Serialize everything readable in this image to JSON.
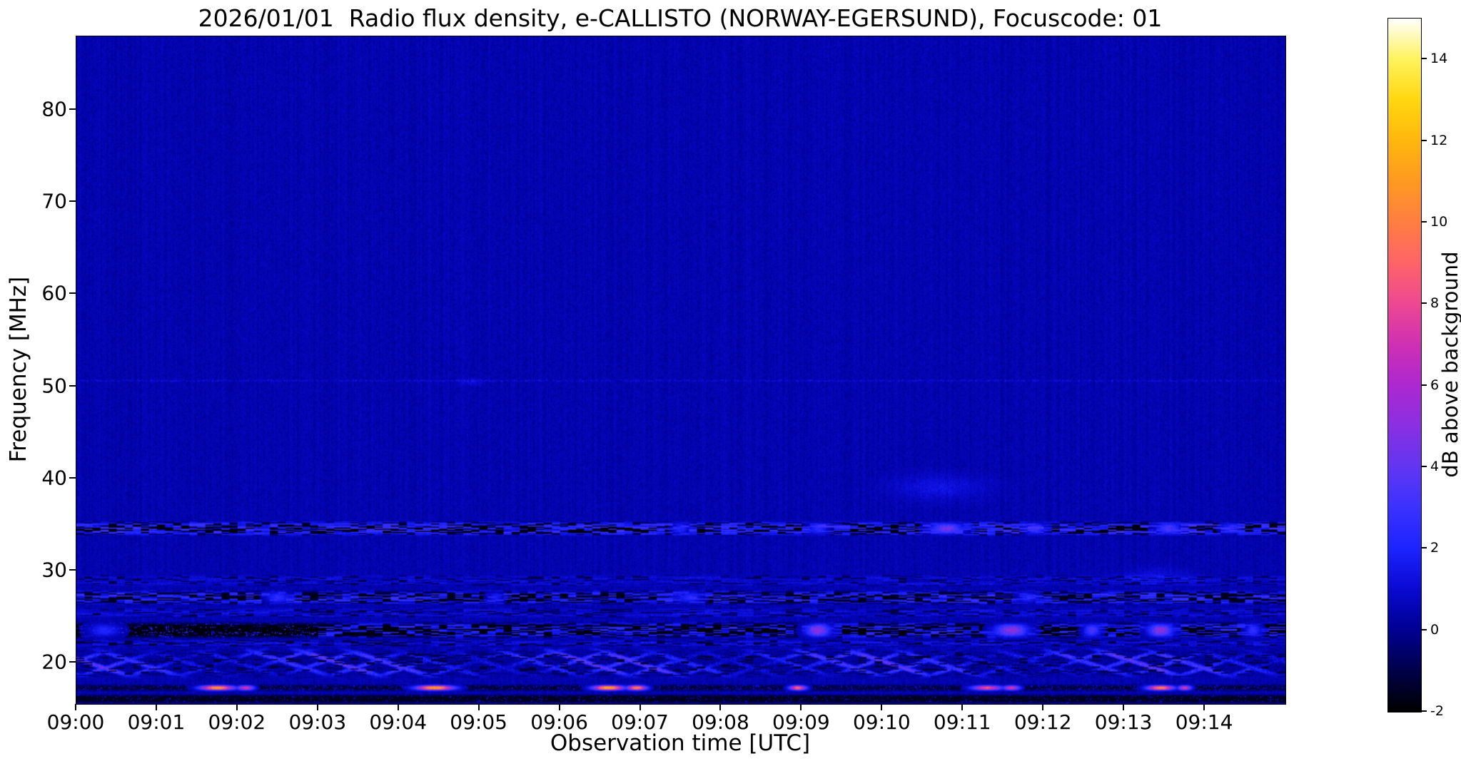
{
  "chart_data": {
    "type": "heatmap",
    "title": "2026/01/01  Radio flux density, e-CALLISTO (NORWAY-EGERSUND), Focuscode: 01",
    "xlabel": "Observation time [UTC]",
    "ylabel": "Frequency [MHz]",
    "x_ticks": [
      "09:00",
      "09:01",
      "09:02",
      "09:03",
      "09:04",
      "09:05",
      "09:06",
      "09:07",
      "09:08",
      "09:09",
      "09:10",
      "09:11",
      "09:12",
      "09:13",
      "09:14"
    ],
    "duration_min": 15,
    "y_ticks": [
      20,
      30,
      40,
      50,
      60,
      70,
      80
    ],
    "freq_range_mhz": [
      15.5,
      88
    ],
    "background_db": 0.45,
    "grid": false,
    "colorbar": {
      "label": "dB above background",
      "ticks": [
        -2,
        0,
        2,
        4,
        6,
        8,
        10,
        12,
        14
      ],
      "vmin": -2,
      "vmax": 15,
      "stops": [
        [
          -2,
          "#000000"
        ],
        [
          -1,
          "#00004a"
        ],
        [
          0,
          "#000092"
        ],
        [
          1,
          "#0a0ad2"
        ],
        [
          2,
          "#1c24ff"
        ],
        [
          3,
          "#3c32ff"
        ],
        [
          4,
          "#6236f2"
        ],
        [
          5,
          "#8a30e2"
        ],
        [
          6,
          "#ad28d2"
        ],
        [
          7,
          "#cf30b4"
        ],
        [
          8,
          "#ee4894"
        ],
        [
          9,
          "#ff6468"
        ],
        [
          10,
          "#ff7e42"
        ],
        [
          11,
          "#ff9a22"
        ],
        [
          12,
          "#ffb70e"
        ],
        [
          13,
          "#ffd710"
        ],
        [
          14,
          "#fff35c"
        ],
        [
          15,
          "#ffffff"
        ]
      ]
    },
    "features": [
      {
        "kind": "speckle_band",
        "f_lo": 33.7,
        "f_hi": 35.4,
        "dark_frac": 0.38,
        "dark_db": -1.8,
        "bright_min": 1.0,
        "bright_max": 3.4,
        "hotspots": [
          {
            "t": 7.5,
            "amp": 2.5,
            "w": 0.1
          },
          {
            "t": 9.2,
            "amp": 3.0,
            "w": 0.12
          },
          {
            "t": 10.8,
            "amp": 5.0,
            "w": 0.2
          },
          {
            "t": 11.9,
            "amp": 3.5,
            "w": 0.12
          },
          {
            "t": 13.55,
            "amp": 4.0,
            "w": 0.15
          },
          {
            "t": 14.3,
            "amp": 2.5,
            "w": 0.1
          }
        ]
      },
      {
        "kind": "speckle_band",
        "f_lo": 26.2,
        "f_hi": 27.9,
        "dark_frac": 0.46,
        "dark_db": -1.6,
        "bright_min": 0.7,
        "bright_max": 3.0,
        "hotspots": [
          {
            "t": 2.5,
            "amp": 3.0,
            "w": 0.14
          },
          {
            "t": 5.2,
            "amp": 2.0,
            "w": 0.1
          },
          {
            "t": 7.6,
            "amp": 2.6,
            "w": 0.16
          },
          {
            "t": 11.8,
            "amp": 2.4,
            "w": 0.12
          }
        ]
      },
      {
        "kind": "speckle_band",
        "f_lo": 28.2,
        "f_hi": 29.6,
        "dark_frac": 0.18,
        "dark_db": -1.0,
        "bright_min": 0.2,
        "bright_max": 1.4,
        "hotspots": []
      },
      {
        "kind": "speckle_band",
        "f_lo": 24.8,
        "f_hi": 26.0,
        "dark_frac": 0.2,
        "dark_db": -1.0,
        "bright_min": 0.2,
        "bright_max": 1.5,
        "hotspots": []
      },
      {
        "kind": "speckle_band",
        "f_lo": 22.5,
        "f_hi": 24.5,
        "dark_frac": 0.52,
        "dark_db": -1.8,
        "bright_min": 0.5,
        "bright_max": 2.8,
        "dark_interval": [
          0.0,
          3.0
        ],
        "hotspots": [
          {
            "t": 0.35,
            "amp": 2.5,
            "w": 0.2
          },
          {
            "t": 9.2,
            "amp": 6.0,
            "w": 0.15
          },
          {
            "t": 11.6,
            "amp": 6.0,
            "w": 0.2
          },
          {
            "t": 12.6,
            "amp": 4.0,
            "w": 0.1
          },
          {
            "t": 13.45,
            "amp": 6.0,
            "w": 0.15
          },
          {
            "t": 14.6,
            "amp": 3.0,
            "w": 0.1
          }
        ]
      },
      {
        "kind": "speckle_band",
        "f_lo": 21.7,
        "f_hi": 22.5,
        "dark_frac": 0.25,
        "dark_db": -1.2,
        "bright_min": 0.2,
        "bright_max": 1.6,
        "hotspots": []
      },
      {
        "kind": "chevron_band",
        "f_lo": 18.2,
        "f_hi": 21.7,
        "period_min": 0.62,
        "stripe_db": 2.4,
        "stripe_var": 1.6,
        "base_db": -0.4,
        "base_var": 1.1,
        "dark_frac": 0.15
      },
      {
        "kind": "blob_row",
        "f_lo": 16.8,
        "f_hi": 17.7,
        "base_db": -1.2,
        "blobs": [
          {
            "t": 1.75,
            "amp": 12.0,
            "w": 0.2
          },
          {
            "t": 2.1,
            "amp": 8.0,
            "w": 0.1
          },
          {
            "t": 4.45,
            "amp": 12.5,
            "w": 0.22
          },
          {
            "t": 6.6,
            "amp": 13.0,
            "w": 0.18
          },
          {
            "t": 6.95,
            "amp": 11.0,
            "w": 0.12
          },
          {
            "t": 8.95,
            "amp": 10.0,
            "w": 0.1
          },
          {
            "t": 11.3,
            "amp": 9.0,
            "w": 0.18
          },
          {
            "t": 11.6,
            "amp": 8.0,
            "w": 0.1
          },
          {
            "t": 13.45,
            "amp": 11.0,
            "w": 0.16
          },
          {
            "t": 13.75,
            "amp": 8.0,
            "w": 0.08
          }
        ]
      },
      {
        "kind": "dark_band",
        "f_lo": 15.5,
        "f_hi": 16.6,
        "db": -1.5
      },
      {
        "kind": "faint_line",
        "f": 50.6,
        "half_width": 0.12,
        "boost": 0.8,
        "prob": 0.55
      },
      {
        "kind": "haze",
        "t": 10.7,
        "f": 39.0,
        "amp": 1.1,
        "wt": 0.55,
        "wf": 1.3
      },
      {
        "kind": "haze",
        "t": 13.4,
        "f": 29.3,
        "amp": 0.9,
        "wt": 0.4,
        "wf": 0.9
      },
      {
        "kind": "haze",
        "t": 4.9,
        "f": 50.5,
        "amp": 0.8,
        "wt": 0.15,
        "wf": 0.4
      }
    ]
  }
}
